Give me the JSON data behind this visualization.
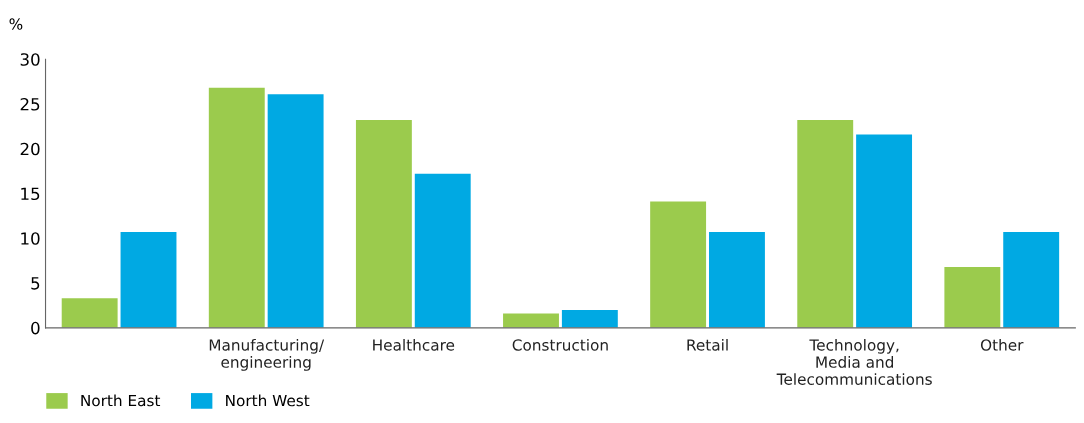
{
  "chart_data": {
    "type": "bar",
    "ylabel": "%",
    "categories": [
      null,
      "Manufacturing/\nengineering",
      "Healthcare",
      "Construction",
      "Retail",
      "Technology,\nMedia and\nTelecommunications",
      "Other"
    ],
    "series": [
      {
        "name": "North East",
        "color": "#9bcb4d",
        "values": [
          3.3,
          26.8,
          23.2,
          1.6,
          14.1,
          23.2,
          6.8
        ]
      },
      {
        "name": "North West",
        "color": "#00a9e3",
        "values": [
          10.7,
          26.1,
          17.2,
          2.0,
          10.7,
          21.6,
          10.7
        ]
      }
    ],
    "ylim": [
      0,
      30
    ],
    "yticks": [
      0,
      5,
      10,
      15,
      20,
      25,
      30
    ],
    "grid": false,
    "legend": "bottom left"
  }
}
